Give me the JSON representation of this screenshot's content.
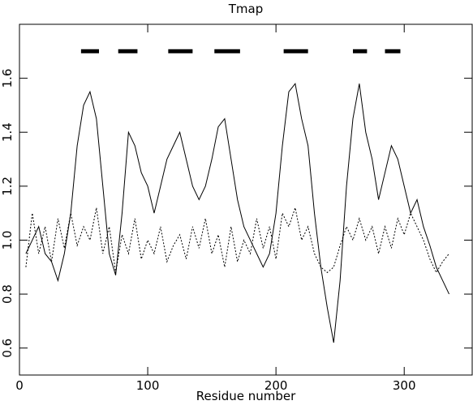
{
  "chart_data": {
    "type": "line",
    "title": "Tmap",
    "x_label": "Residue number",
    "x": [
      5,
      10,
      15,
      20,
      25,
      30,
      35,
      40,
      45,
      50,
      55,
      60,
      65,
      70,
      75,
      80,
      85,
      90,
      95,
      100,
      105,
      110,
      115,
      120,
      125,
      130,
      135,
      140,
      145,
      150,
      155,
      160,
      165,
      170,
      175,
      180,
      185,
      190,
      195,
      200,
      205,
      210,
      215,
      220,
      225,
      230,
      235,
      240,
      245,
      250,
      255,
      260,
      265,
      270,
      275,
      280,
      285,
      290,
      295,
      300,
      305,
      310,
      315,
      320,
      325,
      330,
      335
    ],
    "series": [
      {
        "name": "solid",
        "color": "#000000",
        "dash": "none",
        "values": [
          0.95,
          1.0,
          1.05,
          0.95,
          0.92,
          0.85,
          0.95,
          1.1,
          1.35,
          1.5,
          1.55,
          1.45,
          1.2,
          0.95,
          0.87,
          1.1,
          1.4,
          1.35,
          1.25,
          1.2,
          1.1,
          1.2,
          1.3,
          1.35,
          1.4,
          1.3,
          1.2,
          1.15,
          1.2,
          1.3,
          1.42,
          1.45,
          1.3,
          1.15,
          1.05,
          1.0,
          0.95,
          0.9,
          0.95,
          1.1,
          1.35,
          1.55,
          1.58,
          1.45,
          1.35,
          1.1,
          0.9,
          0.75,
          0.62,
          0.85,
          1.2,
          1.45,
          1.58,
          1.4,
          1.3,
          1.15,
          1.25,
          1.35,
          1.3,
          1.2,
          1.1,
          1.15,
          1.05,
          0.98,
          0.9,
          0.85,
          0.8
        ]
      },
      {
        "name": "dotted",
        "color": "#000000",
        "dash": "2,2",
        "values": [
          0.9,
          1.1,
          0.95,
          1.05,
          0.92,
          1.08,
          0.97,
          1.1,
          0.98,
          1.05,
          1.0,
          1.12,
          0.95,
          1.05,
          0.88,
          1.02,
          0.95,
          1.08,
          0.93,
          1.0,
          0.95,
          1.05,
          0.92,
          0.98,
          1.02,
          0.93,
          1.05,
          0.97,
          1.08,
          0.95,
          1.02,
          0.9,
          1.05,
          0.92,
          1.0,
          0.95,
          1.08,
          0.97,
          1.05,
          0.93,
          1.1,
          1.05,
          1.12,
          1.0,
          1.05,
          0.95,
          0.9,
          0.88,
          0.9,
          0.98,
          1.05,
          1.0,
          1.08,
          1.0,
          1.05,
          0.95,
          1.05,
          0.97,
          1.08,
          1.02,
          1.1,
          1.05,
          1.0,
          0.93,
          0.88,
          0.92,
          0.95
        ]
      }
    ],
    "segments": [
      {
        "start": 48,
        "end": 62,
        "value": 1.7
      },
      {
        "start": 77,
        "end": 92,
        "value": 1.7
      },
      {
        "start": 116,
        "end": 135,
        "value": 1.7
      },
      {
        "start": 152,
        "end": 172,
        "value": 1.7
      },
      {
        "start": 206,
        "end": 225,
        "value": 1.7
      },
      {
        "start": 260,
        "end": 271,
        "value": 1.7
      },
      {
        "start": 285,
        "end": 297,
        "value": 1.7
      }
    ],
    "xlim": [
      0,
      353
    ],
    "xticks": [
      0,
      100,
      200,
      300
    ],
    "ylim": [
      0.5,
      1.8
    ],
    "yticks": [
      0.6,
      0.8,
      {
        "value": 1,
        "label": "1.0"
      },
      1.2,
      1.4,
      1.6
    ]
  }
}
